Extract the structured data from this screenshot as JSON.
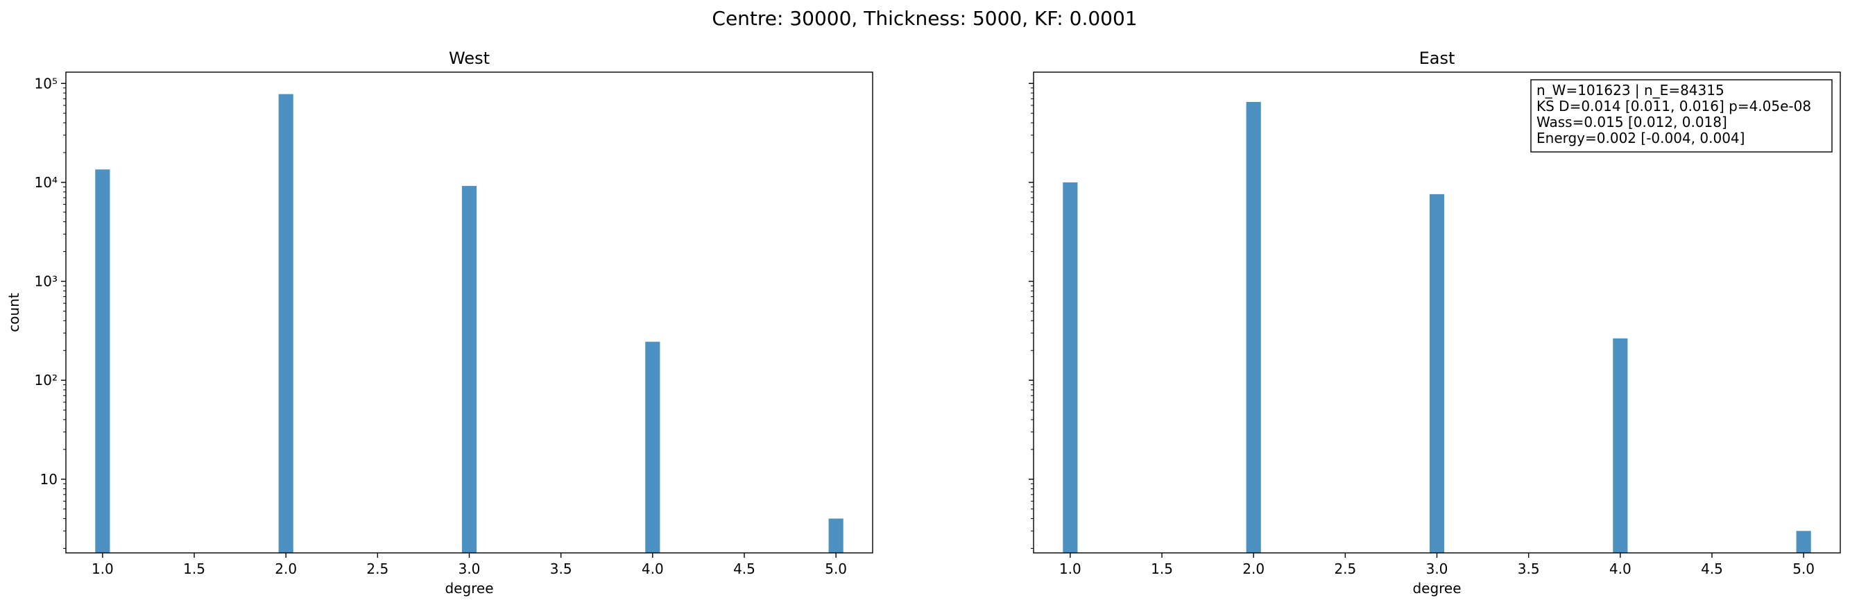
{
  "suptitle": "Centre: 30000, Thickness: 5000, KF: 0.0001",
  "chart_data": [
    {
      "type": "bar",
      "title": "West",
      "xlabel": "degree",
      "ylabel": "count",
      "yscale": "log",
      "xlim": [
        0.8,
        5.2
      ],
      "ylim": [
        1.8,
        130000
      ],
      "xticks": [
        "1.0",
        "1.5",
        "2.0",
        "2.5",
        "3.0",
        "3.5",
        "4.0",
        "4.5",
        "5.0"
      ],
      "yticks": [
        "10",
        "10²",
        "10³",
        "10⁴",
        "10⁵"
      ],
      "bar_color": "#4c91c2",
      "categories": [
        1.0,
        2.0,
        3.0,
        4.0,
        5.0
      ],
      "values": [
        13500,
        78000,
        9200,
        245,
        4
      ]
    },
    {
      "type": "bar",
      "title": "East",
      "xlabel": "degree",
      "ylabel": "",
      "yscale": "log",
      "xlim": [
        0.8,
        5.2
      ],
      "ylim": [
        1.8,
        130000
      ],
      "xticks": [
        "1.0",
        "1.5",
        "2.0",
        "2.5",
        "3.0",
        "3.5",
        "4.0",
        "4.5",
        "5.0"
      ],
      "yticks": [],
      "bar_color": "#4c91c2",
      "categories": [
        1.0,
        2.0,
        3.0,
        4.0,
        5.0
      ],
      "values": [
        10000,
        65000,
        7600,
        265,
        3
      ],
      "annotation": [
        "n_W=101623 | n_E=84315",
        "KS D=0.014 [0.011, 0.016]  p=4.05e-08",
        "Wass=0.015 [0.012, 0.018]",
        "Energy=0.002 [-0.004, 0.004]"
      ]
    }
  ]
}
